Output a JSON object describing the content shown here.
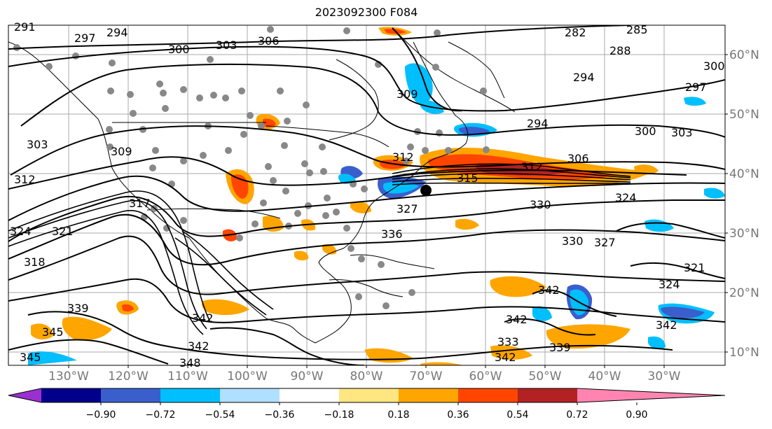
{
  "title": "2023092300 F084",
  "longitude_labels": [
    "130°W",
    "120°W",
    "110°W",
    "100°W",
    "90°W",
    "80°W",
    "70°W",
    "60°W",
    "50°W",
    "40°W",
    "30°W"
  ],
  "latitude_labels": [
    "60°N",
    "50°N",
    "40°N",
    "30°N",
    "20°N",
    "10°N"
  ],
  "contour_labels": [
    "291",
    "297",
    "294",
    "300",
    "303",
    "306",
    "309",
    "282",
    "285",
    "288",
    "300",
    "297",
    "294",
    "294",
    "300",
    "303",
    "306",
    "312",
    "315",
    "312",
    "303",
    "309",
    "312",
    "317",
    "324",
    "321",
    "318",
    "327",
    "324",
    "330",
    "336",
    "327",
    "330",
    "321",
    "324",
    "342",
    "342",
    "339",
    "342",
    "345",
    "342",
    "345",
    "348",
    "342",
    "339",
    "333",
    "342"
  ],
  "colorbar": {
    "tick_labels": [
      "−0.90",
      "−0.72",
      "−0.54",
      "−0.36",
      "−0.18",
      "0.18",
      "0.36",
      "0.54",
      "0.72",
      "0.90"
    ],
    "colors": [
      "#9b30d0",
      "#00008b",
      "#3a5fcd",
      "#00bfff",
      "#b0e0ff",
      "#ffffff",
      "#ffe680",
      "#ffa500",
      "#ff4500",
      "#b22222",
      "#ff85b0"
    ]
  }
}
